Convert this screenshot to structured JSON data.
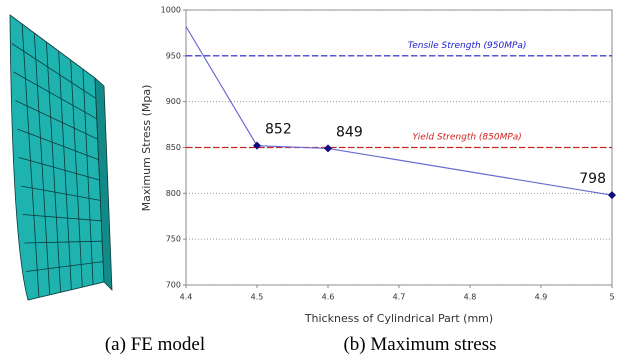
{
  "chart_data": {
    "type": "line",
    "x_label": "Thickness of Cylindrical Part (mm)",
    "y_label": "Maximum Stress (Mpa)",
    "x": [
      4.4,
      4.5,
      4.6,
      5
    ],
    "series": [
      {
        "color": "#6a6ad0",
        "marker_color": "#0a0a80",
        "values": [
          982,
          852,
          849,
          798
        ],
        "value_labels": [
          null,
          "852",
          "849",
          "798"
        ]
      }
    ],
    "reference_lines": [
      {
        "label": "Tensile Strength (950MPa)",
        "value": 950,
        "color": "#2020d0"
      },
      {
        "label": "Yield Strength (850MPa)",
        "value": 850,
        "color": "#d02020"
      }
    ],
    "xlim": [
      4.4,
      5
    ],
    "xticks": [
      4.4,
      4.5,
      4.6,
      4.7,
      4.8,
      4.9,
      5
    ],
    "ylim": [
      700,
      1000
    ],
    "yticks": [
      700,
      750,
      800,
      850,
      900,
      950,
      1000
    ],
    "grid": true
  },
  "captions": [
    "(a) FE model",
    "(b) Maximum stress"
  ]
}
